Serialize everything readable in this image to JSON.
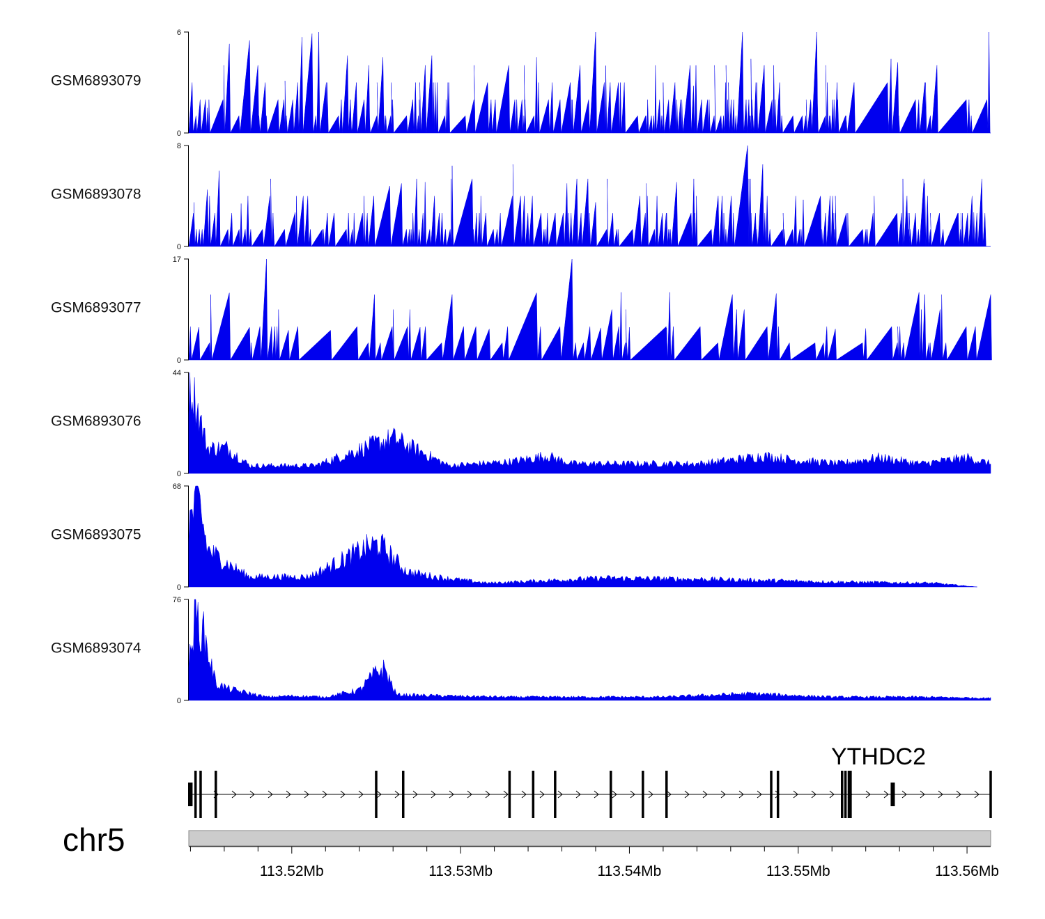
{
  "chart_data": {
    "type": "area",
    "title": "",
    "region": {
      "chrom": "chr5",
      "start_mb": 113.5139,
      "end_mb": 113.5614
    },
    "colors": {
      "signal": "#0000ee",
      "ideogram": "#cccccc",
      "gene": "#000000",
      "axis": "#000000"
    },
    "tracks": [
      {
        "name": "GSM6893079",
        "ymax": 6,
        "ymin": 0,
        "peaks": [
          [
            113.5141,
            3
          ],
          [
            113.515,
            1.5
          ],
          [
            113.5163,
            5.3
          ],
          [
            113.5175,
            5.5
          ],
          [
            113.5196,
            3.1
          ],
          [
            113.5206,
            5.7
          ],
          [
            113.5212,
            5.9
          ],
          [
            113.5216,
            6
          ],
          [
            113.5233,
            4.6
          ],
          [
            113.5254,
            4.5
          ],
          [
            113.5283,
            4.6
          ],
          [
            113.5293,
            3
          ],
          [
            113.5316,
            3
          ],
          [
            113.5345,
            4.5
          ],
          [
            113.5365,
            3
          ],
          [
            113.538,
            6
          ],
          [
            113.5386,
            4
          ],
          [
            113.5397,
            3
          ],
          [
            113.5427,
            3
          ],
          [
            113.5438,
            2.8
          ],
          [
            113.5467,
            6
          ],
          [
            113.5472,
            4.4
          ],
          [
            113.5489,
            3
          ],
          [
            113.5511,
            6
          ],
          [
            113.5523,
            3
          ],
          [
            113.5555,
            4.4
          ],
          [
            113.5559,
            4.2
          ],
          [
            113.5575,
            3
          ],
          [
            113.5613,
            6
          ]
        ]
      },
      {
        "name": "GSM6893078",
        "ymax": 8,
        "ymin": 0,
        "peaks": [
          [
            113.5142,
            3.5
          ],
          [
            113.515,
            4.5
          ],
          [
            113.5157,
            6
          ],
          [
            113.517,
            3.4
          ],
          [
            113.5187,
            4
          ],
          [
            113.5202,
            2.7
          ],
          [
            113.5258,
            4.8
          ],
          [
            113.5265,
            5
          ],
          [
            113.5279,
            5.1
          ],
          [
            113.5295,
            6.4
          ],
          [
            113.5312,
            4
          ],
          [
            113.5331,
            6.5
          ],
          [
            113.5363,
            5
          ],
          [
            113.538,
            3.5
          ],
          [
            113.541,
            5
          ],
          [
            113.5428,
            5.1
          ],
          [
            113.547,
            8
          ],
          [
            113.5479,
            6.5
          ],
          [
            113.5503,
            3.7
          ],
          [
            113.5522,
            4
          ],
          [
            113.5545,
            4
          ],
          [
            113.5575,
            5
          ],
          [
            113.5604,
            2.7
          ]
        ]
      },
      {
        "name": "GSM6893077",
        "ymax": 17,
        "ymin": 0,
        "peaks": [
          [
            113.5145,
            5.5
          ],
          [
            113.5152,
            11
          ],
          [
            113.5163,
            11.3
          ],
          [
            113.5175,
            5.5
          ],
          [
            113.5185,
            17
          ],
          [
            113.5198,
            5
          ],
          [
            113.5223,
            5
          ],
          [
            113.5249,
            11
          ],
          [
            113.5276,
            5.5
          ],
          [
            113.5295,
            11
          ],
          [
            113.5317,
            5.2
          ],
          [
            113.5345,
            11.3
          ],
          [
            113.5366,
            17
          ],
          [
            113.5383,
            5.4
          ],
          [
            113.54,
            5.5
          ],
          [
            113.5422,
            5.4
          ],
          [
            113.5461,
            11
          ],
          [
            113.5487,
            11.2
          ],
          [
            113.5522,
            5.2
          ],
          [
            113.554,
            5.3
          ],
          [
            113.5575,
            11
          ],
          [
            113.5585,
            11
          ],
          [
            113.5614,
            11
          ]
        ]
      },
      {
        "name": "GSM6893076",
        "ymax": 44,
        "ymin": 0,
        "peaks": [
          [
            113.5141,
            43.5
          ],
          [
            113.5145,
            30
          ],
          [
            113.515,
            13
          ],
          [
            113.5162,
            13
          ],
          [
            113.5175,
            4
          ],
          [
            113.5214,
            4
          ],
          [
            113.5246,
            14
          ],
          [
            113.526,
            18
          ],
          [
            113.5293,
            4
          ],
          [
            113.533,
            6
          ],
          [
            113.5351,
            9
          ],
          [
            113.5366,
            5
          ],
          [
            113.5396,
            5
          ],
          [
            113.5441,
            5
          ],
          [
            113.5463,
            7
          ],
          [
            113.5479,
            9
          ],
          [
            113.5496,
            7
          ],
          [
            113.5524,
            5
          ],
          [
            113.5548,
            8
          ],
          [
            113.5573,
            5
          ],
          [
            113.56,
            8
          ],
          [
            113.5614,
            5
          ]
        ]
      },
      {
        "name": "GSM6893075",
        "ymax": 68,
        "ymin": 0,
        "peaks": [
          [
            113.5139,
            52
          ],
          [
            113.5145,
            68
          ],
          [
            113.515,
            30
          ],
          [
            113.516,
            20
          ],
          [
            113.5175,
            8
          ],
          [
            113.521,
            8
          ],
          [
            113.5246,
            32
          ],
          [
            113.5252,
            34
          ],
          [
            113.5268,
            12
          ],
          [
            113.5285,
            8
          ],
          [
            113.5316,
            3
          ],
          [
            113.5385,
            7
          ],
          [
            113.545,
            6
          ],
          [
            113.552,
            4
          ],
          [
            113.558,
            3
          ],
          [
            113.5606,
            0
          ]
        ]
      },
      {
        "name": "GSM6893074",
        "ymax": 76,
        "ymin": 0,
        "peaks": [
          [
            113.5139,
            30
          ],
          [
            113.5143,
            76
          ],
          [
            113.5148,
            58
          ],
          [
            113.5155,
            15
          ],
          [
            113.5163,
            10
          ],
          [
            113.5185,
            3
          ],
          [
            113.52,
            4
          ],
          [
            113.522,
            3
          ],
          [
            113.524,
            9
          ],
          [
            113.525,
            25
          ],
          [
            113.5255,
            28
          ],
          [
            113.5262,
            5
          ],
          [
            113.529,
            4
          ],
          [
            113.533,
            3
          ],
          [
            113.537,
            3
          ],
          [
            113.542,
            3
          ],
          [
            113.5472,
            6
          ],
          [
            113.552,
            3
          ],
          [
            113.5575,
            3
          ],
          [
            113.5614,
            2
          ]
        ]
      }
    ],
    "gene": {
      "name": "YTHDC2",
      "strand": "+",
      "start_mb": 113.5139,
      "end_mb": 113.5614,
      "exons_mb": [
        113.514,
        113.5143,
        113.5146,
        113.5155,
        113.525,
        113.5266,
        113.5329,
        113.5343,
        113.5356,
        113.5389,
        113.5408,
        113.5422,
        113.5484,
        113.5488,
        113.5526,
        113.5528,
        113.553,
        113.5531,
        113.5556,
        113.5614
      ]
    },
    "axis": {
      "chromosome_label": "chr5",
      "tick_labels": [
        "113.52Mb",
        "113.53Mb",
        "113.54Mb",
        "113.55Mb",
        "113.56Mb"
      ],
      "tick_values_mb": [
        113.52,
        113.53,
        113.54,
        113.55,
        113.56
      ]
    }
  }
}
